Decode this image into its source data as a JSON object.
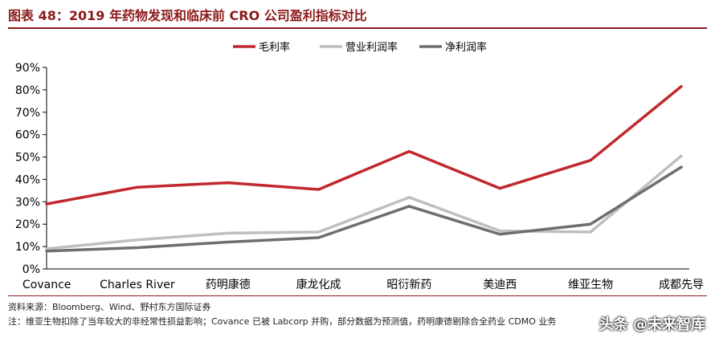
{
  "header": {
    "title": "图表 48：2019 年药物发现和临床前 CRO 公司盈利指标对比"
  },
  "footer": {
    "source": "资料来源：Bloomberg、Wind、野村东方国际证券",
    "note": "注：维亚生物扣除了当年较大的非经常性损益影响；Covance 已被 Labcorp 并购，部分数据为预测值，药明康德剔除合全药业 CDMO 业务"
  },
  "watermark": {
    "text": "头条 @未来智库"
  },
  "colors": {
    "gross": "#C0282C",
    "operating": "#BFBFBF",
    "net": "#6E6E6E",
    "title": "#8B1A1A"
  },
  "chart_data": {
    "type": "line",
    "title": "图表 48：2019 年药物发现和临床前 CRO 公司盈利指标对比",
    "categories": [
      "Covance",
      "Charles River",
      "药明康德",
      "康龙化成",
      "昭衍新药",
      "美迪西",
      "维亚生物",
      "成都先导"
    ],
    "series": [
      {
        "name": "毛利率",
        "color": "#C0282C",
        "values": [
          29,
          36.5,
          38.5,
          35.5,
          52.5,
          36,
          48.5,
          81.5
        ]
      },
      {
        "name": "营业利润率",
        "color": "#BFBFBF",
        "values": [
          9,
          13,
          16,
          16.5,
          32,
          17,
          16.5,
          50.5
        ]
      },
      {
        "name": "净利润率",
        "color": "#6E6E6E",
        "values": [
          8,
          9.5,
          12,
          14,
          28,
          15.5,
          20,
          45.5
        ]
      }
    ],
    "ylim": [
      0,
      90
    ],
    "yticks": [
      0,
      10,
      20,
      30,
      40,
      50,
      60,
      70,
      80,
      90
    ],
    "ytick_labels": [
      "0%",
      "10%",
      "20%",
      "30%",
      "40%",
      "50%",
      "60%",
      "70%",
      "80%",
      "90%"
    ],
    "legend_position": "top-center",
    "grid": false
  }
}
